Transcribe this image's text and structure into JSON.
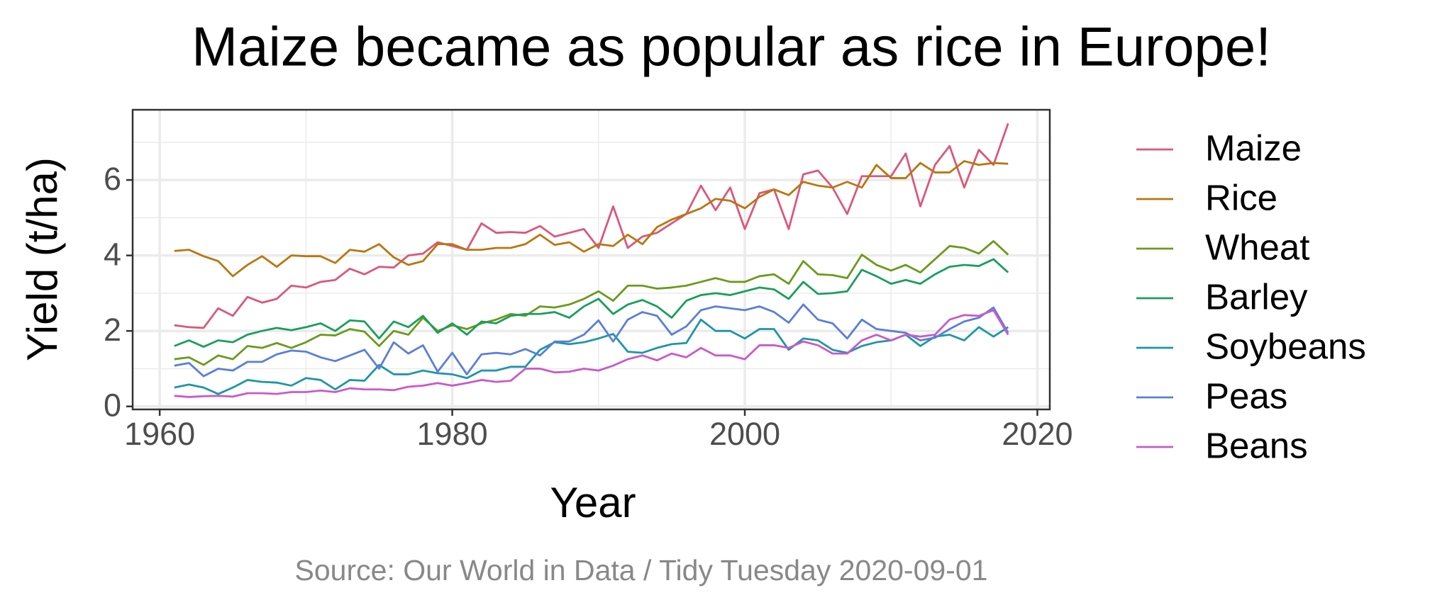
{
  "chart_data": {
    "type": "line",
    "title": "Maize became as popular as rice in Europe!",
    "x_label": "Year",
    "y_label": "Yield (t/ha)",
    "caption": "Source: Our World in Data / Tidy Tuesday 2020-09-01",
    "x": [
      1961,
      1962,
      1963,
      1964,
      1965,
      1966,
      1967,
      1968,
      1969,
      1970,
      1971,
      1972,
      1973,
      1974,
      1975,
      1976,
      1977,
      1978,
      1979,
      1980,
      1981,
      1982,
      1983,
      1984,
      1985,
      1986,
      1987,
      1988,
      1989,
      1990,
      1991,
      1992,
      1993,
      1994,
      1995,
      1996,
      1997,
      1998,
      1999,
      2000,
      2001,
      2002,
      2003,
      2004,
      2005,
      2006,
      2007,
      2008,
      2009,
      2010,
      2011,
      2012,
      2013,
      2014,
      2015,
      2016,
      2017,
      2018
    ],
    "series": [
      {
        "name": "Maize",
        "color": "#d9587c",
        "values": [
          2.15,
          2.1,
          2.08,
          2.6,
          2.4,
          2.9,
          2.75,
          2.85,
          3.2,
          3.15,
          3.3,
          3.35,
          3.65,
          3.5,
          3.7,
          3.68,
          4.0,
          4.05,
          4.35,
          4.25,
          4.15,
          4.85,
          4.6,
          4.62,
          4.6,
          4.78,
          4.5,
          4.6,
          4.7,
          4.2,
          5.3,
          4.2,
          4.5,
          4.6,
          4.85,
          5.1,
          5.85,
          5.2,
          5.8,
          4.7,
          5.65,
          5.75,
          4.7,
          6.15,
          6.25,
          5.8,
          5.1,
          6.1,
          6.1,
          6.1,
          6.7,
          5.3,
          6.4,
          6.9,
          5.8,
          6.8,
          6.4,
          7.5
        ]
      },
      {
        "name": "Rice",
        "color": "#b8770e",
        "values": [
          4.12,
          4.15,
          3.98,
          3.85,
          3.45,
          3.75,
          3.98,
          3.7,
          4.0,
          3.98,
          3.98,
          3.8,
          4.15,
          4.1,
          4.3,
          3.95,
          3.75,
          3.85,
          4.3,
          4.3,
          4.15,
          4.15,
          4.2,
          4.2,
          4.3,
          4.55,
          4.28,
          4.35,
          4.1,
          4.3,
          4.25,
          4.55,
          4.3,
          4.75,
          4.95,
          5.1,
          5.25,
          5.5,
          5.45,
          5.25,
          5.55,
          5.75,
          5.6,
          5.95,
          5.85,
          5.8,
          5.95,
          5.8,
          6.4,
          6.05,
          6.05,
          6.45,
          6.2,
          6.2,
          6.5,
          6.4,
          6.45,
          6.43
        ]
      },
      {
        "name": "Wheat",
        "color": "#6b9a1b",
        "values": [
          1.25,
          1.3,
          1.1,
          1.35,
          1.25,
          1.6,
          1.55,
          1.68,
          1.55,
          1.7,
          1.9,
          1.88,
          2.05,
          1.98,
          1.6,
          2.0,
          1.9,
          2.35,
          2.0,
          2.15,
          2.05,
          2.2,
          2.3,
          2.45,
          2.4,
          2.65,
          2.62,
          2.7,
          2.85,
          3.05,
          2.8,
          3.2,
          3.2,
          3.12,
          3.15,
          3.2,
          3.3,
          3.4,
          3.3,
          3.3,
          3.45,
          3.5,
          3.25,
          3.85,
          3.5,
          3.48,
          3.4,
          4.02,
          3.75,
          3.6,
          3.75,
          3.55,
          3.9,
          4.25,
          4.2,
          4.05,
          4.38,
          4.02
        ]
      },
      {
        "name": "Barley",
        "color": "#1a9e5e",
        "values": [
          1.6,
          1.75,
          1.58,
          1.75,
          1.7,
          1.9,
          2.0,
          2.08,
          2.02,
          2.1,
          2.2,
          2.0,
          2.28,
          2.25,
          1.8,
          2.25,
          2.1,
          2.4,
          1.95,
          2.2,
          1.9,
          2.25,
          2.2,
          2.4,
          2.45,
          2.45,
          2.5,
          2.35,
          2.65,
          2.85,
          2.45,
          2.7,
          2.82,
          2.65,
          2.35,
          2.8,
          2.95,
          3.0,
          2.95,
          3.05,
          3.15,
          3.1,
          2.85,
          3.3,
          2.98,
          3.0,
          3.05,
          3.62,
          3.45,
          3.25,
          3.35,
          3.25,
          3.5,
          3.7,
          3.75,
          3.72,
          3.9,
          3.55
        ]
      },
      {
        "name": "Soybeans",
        "color": "#1e96a6",
        "values": [
          0.5,
          0.58,
          0.5,
          0.33,
          0.5,
          0.7,
          0.65,
          0.63,
          0.55,
          0.75,
          0.7,
          0.45,
          0.7,
          0.68,
          1.1,
          0.85,
          0.85,
          0.95,
          0.88,
          0.85,
          0.75,
          0.95,
          0.95,
          1.05,
          1.05,
          1.5,
          1.7,
          1.65,
          1.7,
          1.8,
          1.92,
          1.45,
          1.42,
          1.55,
          1.65,
          1.68,
          2.3,
          2.0,
          2.0,
          1.8,
          2.05,
          2.05,
          1.5,
          1.8,
          1.75,
          1.5,
          1.42,
          1.6,
          1.7,
          1.75,
          1.9,
          1.6,
          1.85,
          1.9,
          1.75,
          2.1,
          1.85,
          2.1
        ]
      },
      {
        "name": "Peas",
        "color": "#5a7fd8",
        "values": [
          1.08,
          1.15,
          0.8,
          1.0,
          0.95,
          1.18,
          1.18,
          1.38,
          1.48,
          1.45,
          1.3,
          1.2,
          1.35,
          1.5,
          1.0,
          1.7,
          1.4,
          1.62,
          0.92,
          1.42,
          0.85,
          1.38,
          1.42,
          1.38,
          1.52,
          1.35,
          1.72,
          1.72,
          1.9,
          2.28,
          1.72,
          2.3,
          2.5,
          2.4,
          1.9,
          2.12,
          2.55,
          2.65,
          2.6,
          2.55,
          2.65,
          2.5,
          2.22,
          2.7,
          2.3,
          2.2,
          1.8,
          2.3,
          2.05,
          2.0,
          1.95,
          1.75,
          1.82,
          2.05,
          2.25,
          2.35,
          2.62,
          1.95
        ]
      },
      {
        "name": "Beans",
        "color": "#c85ac8",
        "values": [
          0.28,
          0.25,
          0.27,
          0.28,
          0.26,
          0.35,
          0.35,
          0.33,
          0.38,
          0.38,
          0.42,
          0.38,
          0.48,
          0.45,
          0.45,
          0.43,
          0.52,
          0.55,
          0.62,
          0.55,
          0.62,
          0.7,
          0.65,
          0.68,
          1.0,
          1.0,
          0.9,
          0.92,
          1.0,
          0.95,
          1.08,
          1.25,
          1.35,
          1.22,
          1.4,
          1.3,
          1.55,
          1.35,
          1.35,
          1.25,
          1.62,
          1.62,
          1.55,
          1.72,
          1.62,
          1.4,
          1.4,
          1.75,
          1.9,
          1.75,
          1.9,
          1.85,
          1.9,
          2.3,
          2.42,
          2.4,
          2.55,
          1.9
        ]
      }
    ],
    "xlim": [
      1958.15,
      2020.85
    ],
    "xticks": [
      1960,
      1980,
      2000,
      2020
    ],
    "x_minor_ticks": [
      1970,
      1990,
      2010
    ],
    "ylim": [
      -0.08,
      7.86
    ],
    "yticks": [
      0,
      2,
      4,
      6
    ],
    "y_minor_ticks": [
      1,
      3,
      5,
      7
    ],
    "grid": true,
    "legend": "right"
  }
}
